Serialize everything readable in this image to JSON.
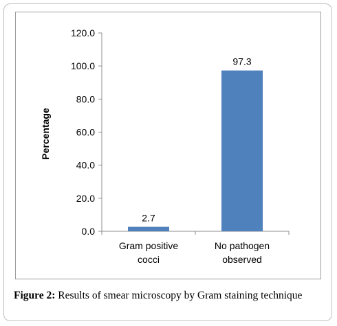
{
  "chart_data": {
    "type": "bar",
    "categories": [
      [
        "Gram positive",
        "cocci"
      ],
      [
        "No pathogen",
        "observed"
      ]
    ],
    "values": [
      2.7,
      97.3
    ],
    "data_labels": [
      "2.7",
      "97.3"
    ],
    "title": "",
    "xlabel": "",
    "ylabel": "Percentage",
    "ylim": [
      0,
      120
    ],
    "yticks": [
      "0.0",
      "20.0",
      "40.0",
      "60.0",
      "80.0",
      "100.0",
      "120.0"
    ],
    "ytick_values": [
      0,
      20,
      40,
      60,
      80,
      100,
      120
    ],
    "bar_color": "#4f81bd",
    "grid": false,
    "legend": "none"
  },
  "caption": {
    "label": "Figure 2:",
    "text": " Results of smear microscopy by Gram staining technique"
  }
}
